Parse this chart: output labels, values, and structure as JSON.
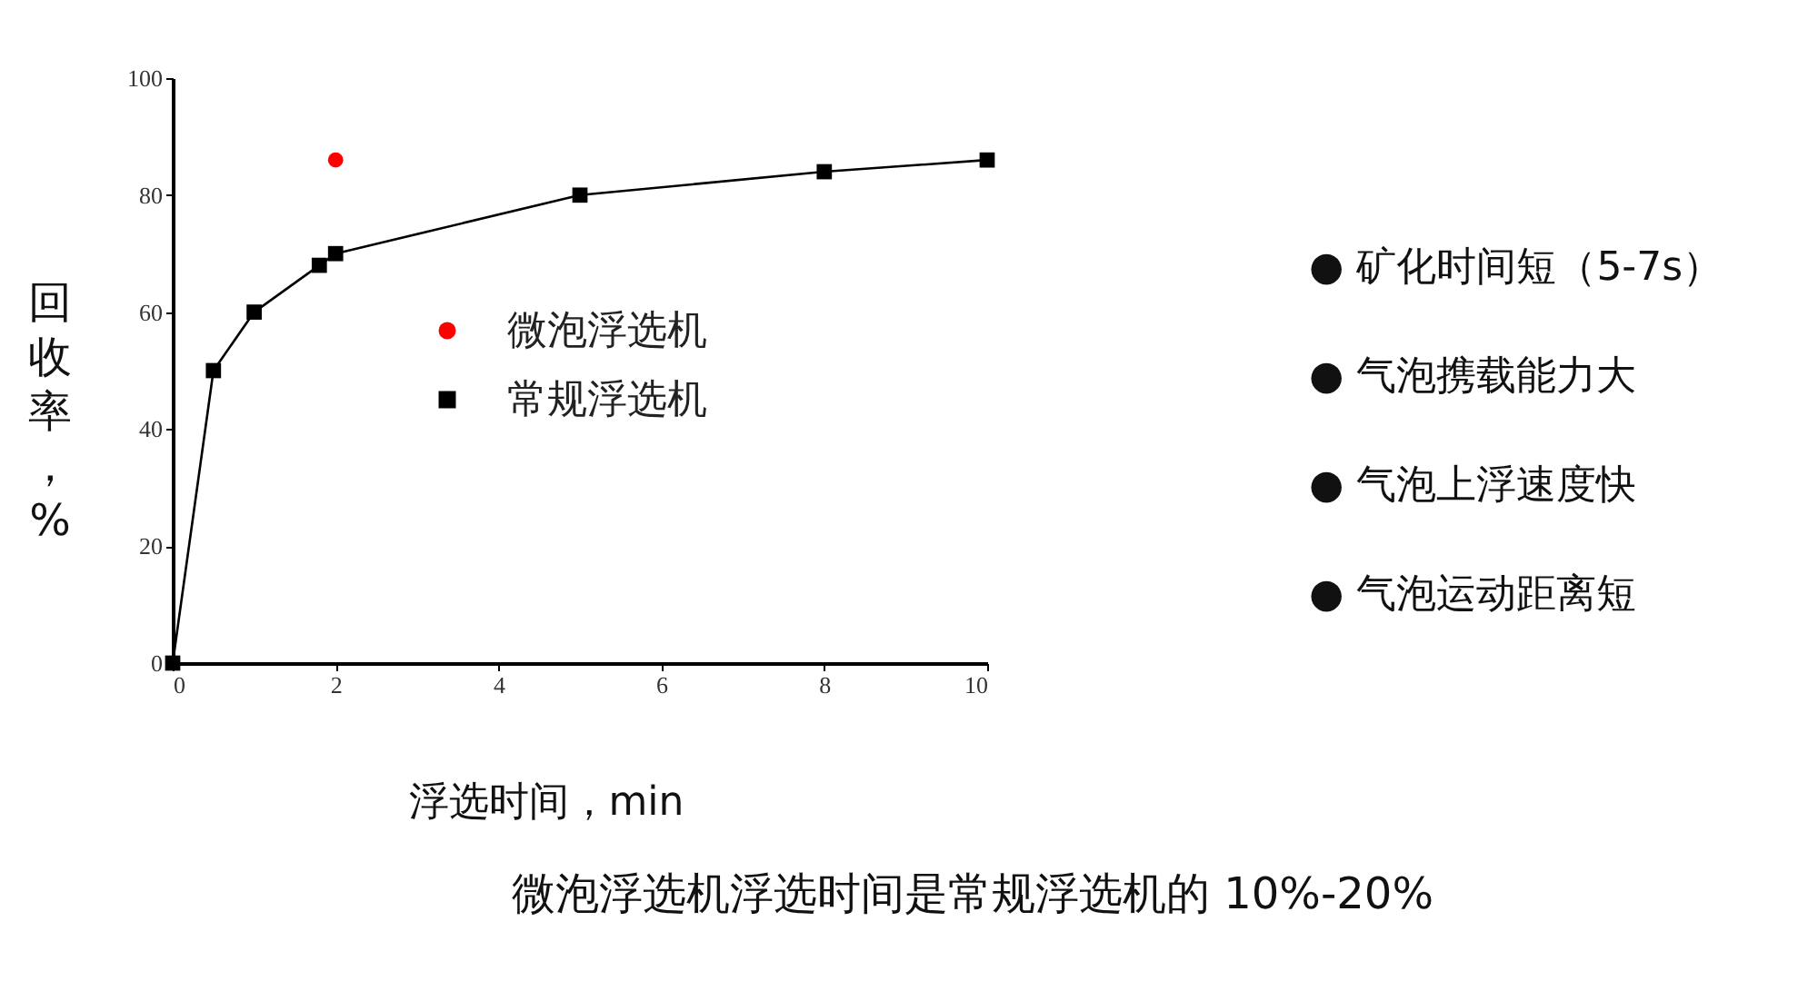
{
  "chart_data": {
    "type": "line",
    "xlabel": "浮选时间，min",
    "ylabel": "回收率，%",
    "xlim": [
      0,
      10
    ],
    "xticks": [
      0,
      2,
      4,
      6,
      8,
      10
    ],
    "ylim": [
      0,
      100
    ],
    "yticks": [
      0,
      20,
      40,
      60,
      80,
      100
    ],
    "grid": false,
    "legend": "center",
    "series": [
      {
        "name": "微泡浮选机",
        "type": "scatter",
        "marker": "circle",
        "color": "#ff0000",
        "x": [
          2
        ],
        "values": [
          86
        ]
      },
      {
        "name": "常规浮选机",
        "marker": "square",
        "color": "#000000",
        "x": [
          0,
          0.5,
          1,
          1.8,
          2,
          5,
          8,
          10
        ],
        "values": [
          0,
          50,
          60,
          68,
          70,
          80,
          84,
          86
        ]
      }
    ],
    "annotations": [
      "● 矿化时间短（5-7s）",
      "● 气泡携载能力大",
      "● 气泡上浮速度快",
      "● 气泡运动距离短",
      "微泡浮选机浮选时间是常规浮选机的 10%-20%"
    ]
  }
}
